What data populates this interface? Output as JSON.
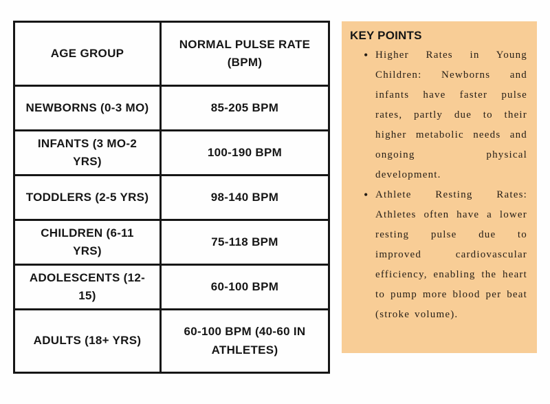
{
  "table": {
    "headers": [
      "AGE GROUP",
      "NORMAL PULSE RATE (BPM)"
    ],
    "rows": [
      {
        "age_group": "NEWBORNS (0-3 MO)",
        "pulse_rate": "85-205 BPM"
      },
      {
        "age_group": "INFANTS (3 MO-2 YRS)",
        "pulse_rate": "100-190 BPM"
      },
      {
        "age_group": "TODDLERS (2-5 YRS)",
        "pulse_rate": "98-140 BPM"
      },
      {
        "age_group": "CHILDREN (6-11 YRS)",
        "pulse_rate": "75-118 BPM"
      },
      {
        "age_group": "ADOLESCENTS (12-15)",
        "pulse_rate": "60-100 BPM"
      },
      {
        "age_group": "ADULTS (18+ YRS)",
        "pulse_rate": "60-100 BPM (40-60 IN ATHLETES)"
      }
    ]
  },
  "key_points": {
    "title": "KEY POINTS",
    "bullets": [
      "Higher Rates in Young Children: Newborns and infants have faster pulse rates, partly due to their higher metabolic needs and ongoing physical development.",
      "Athlete Resting Rates: Athletes often have a lower resting pulse due to improved cardiovascular efficiency, enabling the heart to pump more blood per beat (stroke volume)."
    ]
  },
  "colors": {
    "panel_bg": "#F8CD96",
    "table_border": "#161616",
    "text": "#161616",
    "page_bg": "#FEFEFE"
  }
}
